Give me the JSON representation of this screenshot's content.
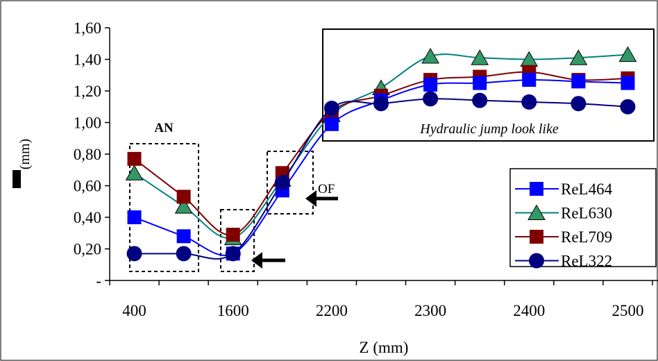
{
  "chart_data": {
    "type": "line",
    "title": "",
    "xlabel": "Z (mm)",
    "ylabel": "(mm)",
    "categories": [
      "400",
      "",
      "1600",
      "",
      "2200",
      "",
      "2300",
      "",
      "2400",
      "",
      "2500"
    ],
    "x_tick_labels": [
      "400",
      "1600",
      "2200",
      "2300",
      "2400",
      "2500"
    ],
    "y_tick_labels": [
      "-",
      "0,20",
      "0,40",
      "0,60",
      "0,80",
      "1,00",
      "1,20",
      "1,40",
      "1,60"
    ],
    "ylim": [
      0,
      1.6
    ],
    "grid": false,
    "legend_position": "right",
    "series": [
      {
        "name": "ReL464",
        "color": "#0000ff",
        "line_color": "#0000ff",
        "marker": "square",
        "values": [
          0.4,
          0.28,
          0.17,
          0.57,
          0.99,
          1.14,
          1.24,
          1.25,
          1.27,
          1.26,
          1.25
        ]
      },
      {
        "name": "ReL630",
        "color": "#339966",
        "line_color": "#008080",
        "marker": "triangle",
        "values": [
          0.68,
          0.47,
          0.27,
          0.64,
          1.05,
          1.22,
          1.42,
          1.41,
          1.4,
          1.41,
          1.43
        ]
      },
      {
        "name": "ReL709",
        "color": "#800000",
        "line_color": "#800000",
        "marker": "square",
        "values": [
          0.77,
          0.53,
          0.29,
          0.68,
          1.07,
          1.17,
          1.27,
          1.29,
          1.32,
          1.27,
          1.28
        ]
      },
      {
        "name": "ReL322",
        "color": "#000080",
        "line_color": "#000080",
        "marker": "circle",
        "values": [
          0.17,
          0.17,
          0.17,
          0.62,
          1.09,
          1.12,
          1.15,
          1.14,
          1.13,
          1.12,
          1.1
        ]
      }
    ],
    "annotations": {
      "an_label": "AN",
      "of_label": "OF",
      "jump_label": "Hydraulic jump look like"
    }
  }
}
